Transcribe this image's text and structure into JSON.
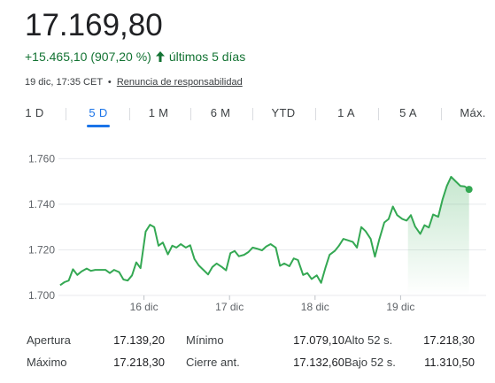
{
  "header": {
    "price": "17.169,80",
    "change": "+15.465,10 (907,20 %)",
    "period_label": "últimos 5 días",
    "timestamp": "19 dic, 17:35 CET",
    "separator": "•",
    "disclaimer": "Renuncia de responsabilidad",
    "up_color": "#137333",
    "arrow_icon": "arrow-up-icon"
  },
  "tabs": [
    {
      "label": "1 D",
      "active": false
    },
    {
      "label": "5 D",
      "active": true
    },
    {
      "label": "1 M",
      "active": false
    },
    {
      "label": "6 M",
      "active": false
    },
    {
      "label": "YTD",
      "active": false
    },
    {
      "label": "1 A",
      "active": false
    },
    {
      "label": "5 A",
      "active": false
    },
    {
      "label": "Máx.",
      "active": false
    }
  ],
  "chart_data": {
    "type": "area",
    "x_tick_labels": [
      "16 dic",
      "17 dic",
      "18 dic",
      "19 dic"
    ],
    "x_tick_positions": [
      1,
      2,
      3,
      4
    ],
    "xlim": [
      0.0,
      5.0
    ],
    "ylim": [
      1.7,
      1.764
    ],
    "y_ticks": [
      1.7,
      1.72,
      1.74,
      1.76
    ],
    "y_tick_labels": [
      "1.700",
      "1.720",
      "1.740",
      "1.760"
    ],
    "grid": true,
    "line_color": "#34a853",
    "series": [
      {
        "points": [
          [
            0.02,
            1.7045
          ],
          [
            0.07,
            1.7058
          ],
          [
            0.12,
            1.7065
          ],
          [
            0.17,
            1.7115
          ],
          [
            0.22,
            1.709
          ],
          [
            0.27,
            1.7105
          ],
          [
            0.33,
            1.7118
          ],
          [
            0.38,
            1.7108
          ],
          [
            0.43,
            1.7112
          ],
          [
            0.49,
            1.7112
          ],
          [
            0.55,
            1.7112
          ],
          [
            0.6,
            1.7098
          ],
          [
            0.65,
            1.7112
          ],
          [
            0.71,
            1.7102
          ],
          [
            0.76,
            1.707
          ],
          [
            0.81,
            1.7065
          ],
          [
            0.86,
            1.7088
          ],
          [
            0.91,
            1.7145
          ],
          [
            0.96,
            1.712
          ],
          [
            1.02,
            1.728
          ],
          [
            1.07,
            1.731
          ],
          [
            1.12,
            1.73
          ],
          [
            1.17,
            1.7218
          ],
          [
            1.22,
            1.7232
          ],
          [
            1.28,
            1.718
          ],
          [
            1.33,
            1.7218
          ],
          [
            1.38,
            1.721
          ],
          [
            1.43,
            1.7225
          ],
          [
            1.49,
            1.721
          ],
          [
            1.54,
            1.722
          ],
          [
            1.59,
            1.716
          ],
          [
            1.64,
            1.7132
          ],
          [
            1.7,
            1.711
          ],
          [
            1.75,
            1.7092
          ],
          [
            1.8,
            1.7125
          ],
          [
            1.85,
            1.714
          ],
          [
            1.91,
            1.7125
          ],
          [
            1.96,
            1.711
          ],
          [
            2.01,
            1.7185
          ],
          [
            2.06,
            1.7195
          ],
          [
            2.11,
            1.7172
          ],
          [
            2.17,
            1.7178
          ],
          [
            2.22,
            1.719
          ],
          [
            2.27,
            1.721
          ],
          [
            2.32,
            1.7205
          ],
          [
            2.38,
            1.7198
          ],
          [
            2.43,
            1.7215
          ],
          [
            2.48,
            1.7225
          ],
          [
            2.54,
            1.721
          ],
          [
            2.59,
            1.713
          ],
          [
            2.64,
            1.714
          ],
          [
            2.7,
            1.7128
          ],
          [
            2.75,
            1.7162
          ],
          [
            2.8,
            1.7155
          ],
          [
            2.86,
            1.709
          ],
          [
            2.91,
            1.7098
          ],
          [
            2.96,
            1.7072
          ],
          [
            3.02,
            1.7088
          ],
          [
            3.07,
            1.7055
          ],
          [
            3.12,
            1.712
          ],
          [
            3.17,
            1.7178
          ],
          [
            3.23,
            1.7195
          ],
          [
            3.28,
            1.7218
          ],
          [
            3.33,
            1.7248
          ],
          [
            3.38,
            1.7242
          ],
          [
            3.44,
            1.7235
          ],
          [
            3.49,
            1.721
          ],
          [
            3.54,
            1.73
          ],
          [
            3.59,
            1.7282
          ],
          [
            3.65,
            1.7248
          ],
          [
            3.7,
            1.717
          ],
          [
            3.75,
            1.7245
          ],
          [
            3.81,
            1.732
          ],
          [
            3.86,
            1.7335
          ],
          [
            3.91,
            1.739
          ],
          [
            3.96,
            1.7352
          ],
          [
            4.02,
            1.7335
          ],
          [
            4.07,
            1.7328
          ],
          [
            4.12,
            1.7352
          ],
          [
            4.17,
            1.7302
          ],
          [
            4.23,
            1.727
          ],
          [
            4.28,
            1.7308
          ],
          [
            4.33,
            1.7298
          ],
          [
            4.38,
            1.7355
          ],
          [
            4.44,
            1.7345
          ],
          [
            4.49,
            1.742
          ],
          [
            4.54,
            1.748
          ],
          [
            4.59,
            1.752
          ],
          [
            4.65,
            1.7498
          ],
          [
            4.7,
            1.748
          ],
          [
            4.75,
            1.7478
          ],
          [
            4.8,
            1.7465
          ]
        ]
      }
    ]
  },
  "stats": [
    {
      "label": "Apertura",
      "value": "17.139,20"
    },
    {
      "label": "Mínimo",
      "value": "17.079,10"
    },
    {
      "label": "Alto 52 s.",
      "value": "17.218,30"
    },
    {
      "label": "Máximo",
      "value": "17.218,30"
    },
    {
      "label": "Cierre ant.",
      "value": "17.132,60"
    },
    {
      "label": "Bajo 52 s.",
      "value": "11.310,50"
    }
  ]
}
